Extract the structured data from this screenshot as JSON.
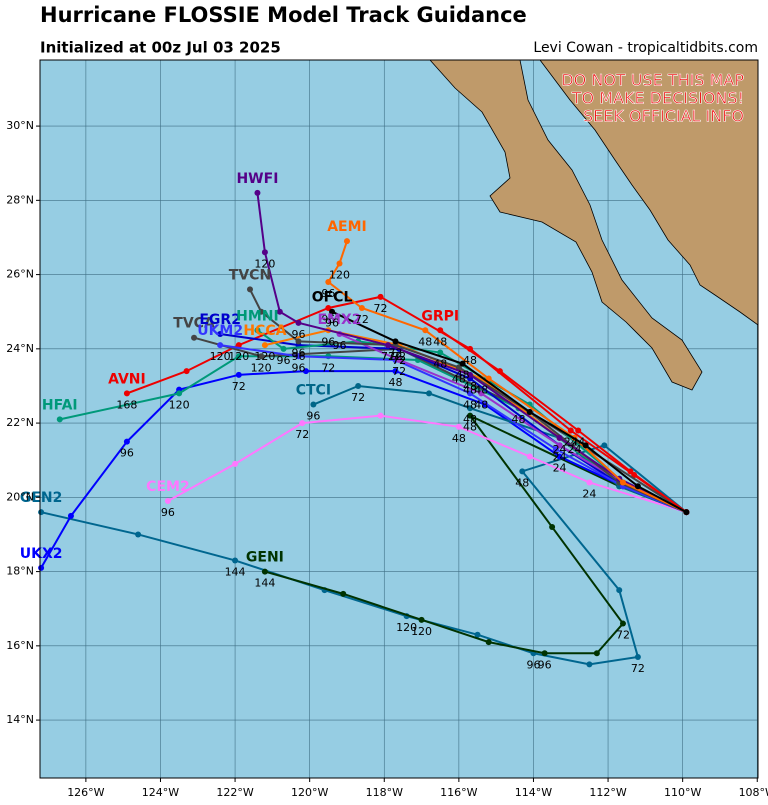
{
  "chart_data": {
    "type": "track-map",
    "title": "Hurricane FLOSSIE Model Track Guidance",
    "subtitle": "Initialized at 00z Jul 03 2025",
    "credit": "Levi Cowan - tropicaltidbits.com",
    "warning": [
      "DO NOT USE THIS MAP",
      "TO MAKE DECISIONS!",
      "SEEK OFFICIAL INFO"
    ],
    "xlim": [
      -127.23,
      -107.98
    ],
    "ylim": [
      12.44,
      31.78
    ],
    "xticks": [
      {
        "value": -126,
        "label": "126°W"
      },
      {
        "value": -124,
        "label": "124°W"
      },
      {
        "value": -122,
        "label": "122°W"
      },
      {
        "value": -120,
        "label": "120°W"
      },
      {
        "value": -118,
        "label": "118°W"
      },
      {
        "value": -116,
        "label": "116°W"
      },
      {
        "value": -114,
        "label": "114°W"
      },
      {
        "value": -112,
        "label": "112°W"
      },
      {
        "value": -110,
        "label": "110°W"
      },
      {
        "value": -108,
        "label": "108°W"
      }
    ],
    "yticks": [
      {
        "value": 14,
        "label": "14°N"
      },
      {
        "value": 16,
        "label": "16°N"
      },
      {
        "value": 18,
        "label": "18°N"
      },
      {
        "value": 20,
        "label": "20°N"
      },
      {
        "value": 22,
        "label": "22°N"
      },
      {
        "value": 24,
        "label": "24°N"
      },
      {
        "value": 26,
        "label": "26°N"
      },
      {
        "value": 28,
        "label": "28°N"
      },
      {
        "value": 30,
        "label": "30°N"
      }
    ],
    "grid": true,
    "series": [
      {
        "name": "GEN2",
        "color": "#00668f",
        "x": [
          -109.9,
          -112.1,
          -114.3,
          -111.7,
          -111.2,
          -112.5,
          -114.0,
          -115.5,
          -117.4,
          -119.6,
          -122.0,
          -124.6,
          -127.2
        ],
        "values": [
          19.6,
          21.4,
          20.7,
          17.5,
          15.7,
          15.5,
          15.8,
          16.3,
          16.8,
          17.5,
          18.3,
          19.0,
          19.6
        ],
        "hours": [
          null,
          null,
          "48",
          null,
          "72",
          null,
          "96",
          null,
          "120",
          null,
          "144",
          null,
          null
        ]
      },
      {
        "name": "GENI",
        "color": "#003300",
        "x": [
          -109.9,
          -111.7,
          -115.7,
          -113.5,
          -111.6,
          -112.3,
          -113.7,
          -115.2,
          -117.0,
          -119.1,
          -121.2
        ],
        "values": [
          19.6,
          20.3,
          22.2,
          19.2,
          16.6,
          15.8,
          15.8,
          16.1,
          16.7,
          17.4,
          18.0
        ],
        "hours": [
          null,
          null,
          "48",
          null,
          "72",
          null,
          "96",
          null,
          "120",
          null,
          "144"
        ]
      },
      {
        "name": "CEM2",
        "color": "#ff77ff",
        "x": [
          -109.9,
          -112.5,
          -114.1,
          -116.0,
          -118.1,
          -120.2,
          -122.0,
          -123.8
        ],
        "values": [
          19.6,
          20.4,
          21.1,
          21.9,
          22.2,
          22.0,
          20.9,
          19.9
        ],
        "hours": [
          null,
          "24",
          null,
          "48",
          null,
          "72",
          null,
          "96"
        ]
      },
      {
        "name": "UKX2",
        "color": "#0000ff",
        "x": [
          -109.9,
          -111.6,
          -113.3,
          -115.3,
          -117.7,
          -120.1,
          -121.9,
          -123.5,
          -124.9,
          -126.4,
          -127.2
        ],
        "values": [
          19.6,
          20.3,
          21.1,
          22.5,
          23.4,
          23.4,
          23.3,
          22.9,
          21.5,
          19.5,
          18.1
        ],
        "hours": [
          null,
          null,
          "24",
          null,
          "48",
          null,
          "72",
          null,
          "96",
          null,
          null
        ]
      },
      {
        "name": "CTCI",
        "color": "#006688",
        "x": [
          -109.9,
          -111.7,
          -113.3,
          -115.7,
          -116.8,
          -118.7,
          -119.9
        ],
        "values": [
          19.6,
          20.3,
          21.6,
          22.4,
          22.8,
          23.0,
          22.5
        ],
        "hours": [
          null,
          null,
          null,
          "48",
          null,
          "72",
          "96"
        ]
      },
      {
        "name": "HFAI",
        "color": "#00997a",
        "x": [
          -109.9,
          -111.7,
          -114.4,
          -117.1,
          -119.5,
          -121.9,
          -123.5,
          -126.7
        ],
        "values": [
          19.6,
          20.4,
          22.4,
          23.7,
          23.8,
          23.8,
          22.8,
          22.1
        ],
        "hours": [
          null,
          null,
          "48",
          null,
          "72",
          null,
          "120",
          null
        ]
      },
      {
        "name": "AVNI",
        "color": "#ee0000",
        "x": [
          -109.9,
          -111.3,
          -113.0,
          -115.7,
          -118.1,
          -119.5,
          -121.9,
          -123.3,
          -124.9
        ],
        "values": [
          19.6,
          20.6,
          21.8,
          24.0,
          25.4,
          25.1,
          24.1,
          23.4,
          22.8
        ],
        "hours": [
          null,
          null,
          "24",
          "48",
          "72",
          "96",
          "120",
          null,
          "168"
        ]
      },
      {
        "name": "TVCA",
        "color": "#444444",
        "x": [
          -109.9,
          -114.1,
          -117.6,
          -121.3,
          -123.1
        ],
        "values": [
          19.6,
          22.3,
          24.0,
          23.8,
          24.3
        ],
        "hours": [
          null,
          null,
          "72",
          "120",
          null
        ]
      },
      {
        "name": "EGR2",
        "color": "#0000cc",
        "x": [
          -109.9,
          -111.6,
          -113.3,
          -115.7,
          -117.6,
          -120.3,
          -122.4
        ],
        "values": [
          19.6,
          20.3,
          21.4,
          23.2,
          24.0,
          24.1,
          24.4
        ],
        "hours": [
          null,
          null,
          "24",
          "48",
          "72",
          "96",
          null
        ]
      },
      {
        "name": "UKM2",
        "color": "#3333ff",
        "x": [
          -109.9,
          -111.6,
          -113.4,
          -115.7,
          -117.7,
          -120.3,
          -122.4
        ],
        "values": [
          19.6,
          20.3,
          21.3,
          22.8,
          23.7,
          23.8,
          24.1
        ],
        "hours": [
          null,
          null,
          null,
          "48",
          null,
          "96",
          "120"
        ]
      },
      {
        "name": "HMNI",
        "color": "#009977",
        "x": [
          -109.9,
          -111.7,
          -114.1,
          -116.5,
          -118.7,
          -120.7,
          -121.4
        ],
        "values": [
          19.6,
          20.5,
          22.5,
          23.9,
          24.2,
          24.0,
          24.5
        ],
        "hours": [
          null,
          null,
          null,
          "48",
          null,
          "96",
          null
        ]
      },
      {
        "name": "HCCA",
        "color": "#ff7700",
        "x": [
          -109.9,
          -111.6,
          -113.3,
          -115.4,
          -117.6,
          -119.5,
          -121.2
        ],
        "values": [
          19.6,
          20.4,
          21.6,
          23.2,
          24.1,
          24.5,
          24.1
        ],
        "hours": [
          null,
          null,
          null,
          "48",
          "72",
          "96",
          "120"
        ]
      },
      {
        "name": "EMX2",
        "color": "#9933cc",
        "x": [
          -109.9,
          -111.6,
          -113.3,
          -115.4,
          -117.6,
          -119.2
        ],
        "values": [
          19.6,
          20.4,
          21.4,
          22.8,
          23.7,
          24.4
        ],
        "hours": [
          null,
          null,
          null,
          "48",
          "72",
          "96"
        ]
      },
      {
        "name": "TVCN",
        "color": "#444444",
        "x": [
          -109.9,
          -111.7,
          -114.1,
          -116.0,
          -117.7,
          -120.3,
          -121.3,
          -121.6
        ],
        "values": [
          19.6,
          20.4,
          22.3,
          23.5,
          24.1,
          24.2,
          25.0,
          25.6
        ],
        "hours": [
          null,
          null,
          null,
          "48",
          "72",
          "96",
          null,
          null
        ]
      },
      {
        "name": "HWFI",
        "color": "#550088",
        "x": [
          -109.9,
          -111.7,
          -113.3,
          -115.7,
          -117.9,
          -120.3,
          -120.8,
          -121.2,
          -121.4
        ],
        "values": [
          19.6,
          20.5,
          21.6,
          23.3,
          24.1,
          24.7,
          25.0,
          26.6,
          28.2
        ],
        "hours": [
          null,
          null,
          "24",
          "48",
          "72",
          "96",
          null,
          "120",
          null
        ]
      },
      {
        "name": "AEMI",
        "color": "#ff6600",
        "x": [
          -109.9,
          -111.6,
          -112.9,
          -115.2,
          -116.9,
          -118.6,
          -119.5,
          -119.2,
          -119.0
        ],
        "values": [
          19.6,
          20.4,
          21.6,
          23.2,
          24.5,
          25.1,
          25.8,
          26.3,
          26.9
        ],
        "hours": [
          null,
          null,
          "24",
          null,
          "48",
          "72",
          "96",
          "120",
          null
        ]
      },
      {
        "name": "GRPI",
        "color": "#ee0000",
        "x": [
          -109.9,
          -111.4,
          -112.8,
          -114.9,
          -116.5
        ],
        "values": [
          19.6,
          20.7,
          21.8,
          23.4,
          24.5
        ],
        "hours": [
          null,
          null,
          "24",
          null,
          "48"
        ]
      },
      {
        "name": "OFCL",
        "color": "#000000",
        "x": [
          -109.9,
          -111.2,
          -112.6,
          -114.1,
          -115.9,
          -117.7,
          -119.4
        ],
        "values": [
          19.6,
          20.3,
          21.4,
          22.3,
          23.6,
          24.2,
          25.0
        ],
        "hours": [
          null,
          null,
          null,
          null,
          "48",
          "72",
          "96"
        ]
      }
    ]
  }
}
